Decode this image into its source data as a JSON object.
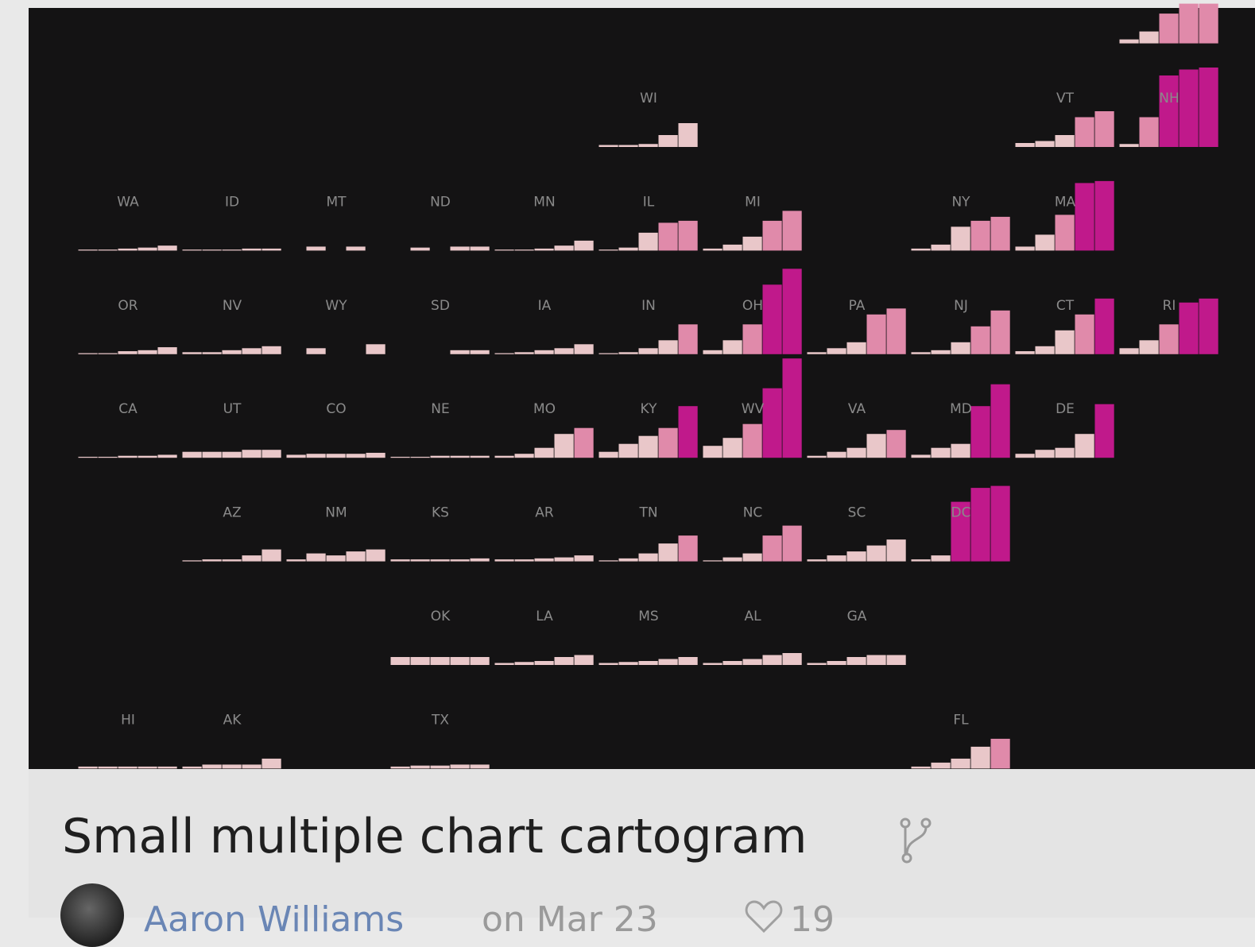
{
  "card": {
    "title": "Small multiple chart cartogram",
    "author": "Aaron Williams",
    "date": "on Mar 23",
    "likes": "19"
  },
  "thumbnail": {
    "type": "bar",
    "background": "#141314",
    "label_color": "#8a8a8a",
    "color_thresholds": [
      26,
      50
    ],
    "colors": [
      "#e9c7c9",
      "#e08aaa",
      "#c0198b"
    ],
    "ylim": [
      0,
      100
    ],
    "states": [
      {
        "label": null,
        "values": [
          4,
          12,
          30,
          40,
          40
        ]
      },
      {
        "label": "WI",
        "values": [
          2,
          2,
          3,
          12,
          24
        ]
      },
      {
        "label": "VT",
        "values": [
          4,
          6,
          12,
          30,
          36
        ]
      },
      {
        "label": "NH",
        "values": [
          3,
          30,
          72,
          78,
          80
        ]
      },
      {
        "label": "WA",
        "values": [
          1,
          1,
          2,
          3,
          5
        ]
      },
      {
        "label": "ID",
        "values": [
          1,
          1,
          1,
          2,
          2
        ]
      },
      {
        "label": "MT",
        "values": [
          null,
          4,
          null,
          4,
          null
        ]
      },
      {
        "label": "ND",
        "values": [
          null,
          3,
          null,
          4,
          4
        ]
      },
      {
        "label": "MN",
        "values": [
          1,
          1,
          2,
          5,
          10
        ]
      },
      {
        "label": "IL",
        "values": [
          1,
          3,
          18,
          28,
          30
        ]
      },
      {
        "label": "MI",
        "values": [
          2,
          6,
          14,
          30,
          40
        ]
      },
      {
        "label": "NY",
        "values": [
          2,
          6,
          24,
          30,
          34
        ]
      },
      {
        "label": "MA",
        "values": [
          4,
          16,
          36,
          68,
          70
        ]
      },
      {
        "label": "OR",
        "values": [
          1,
          1,
          3,
          4,
          7
        ]
      },
      {
        "label": "NV",
        "values": [
          2,
          2,
          4,
          6,
          8
        ]
      },
      {
        "label": "WY",
        "values": [
          null,
          6,
          null,
          null,
          10
        ]
      },
      {
        "label": "SD",
        "values": [
          null,
          null,
          null,
          4,
          4
        ]
      },
      {
        "label": "IA",
        "values": [
          1,
          2,
          4,
          6,
          10
        ]
      },
      {
        "label": "IN",
        "values": [
          1,
          2,
          6,
          14,
          30
        ]
      },
      {
        "label": "OH",
        "values": [
          4,
          14,
          30,
          70,
          86
        ]
      },
      {
        "label": "PA",
        "values": [
          2,
          6,
          12,
          40,
          46
        ]
      },
      {
        "label": "NJ",
        "values": [
          2,
          4,
          12,
          28,
          44
        ]
      },
      {
        "label": "CT",
        "values": [
          3,
          8,
          24,
          40,
          56
        ]
      },
      {
        "label": "RI",
        "values": [
          6,
          14,
          30,
          52,
          56
        ]
      },
      {
        "label": "CA",
        "values": [
          1,
          1,
          2,
          2,
          3
        ]
      },
      {
        "label": "UT",
        "values": [
          6,
          6,
          6,
          8,
          8
        ]
      },
      {
        "label": "CO",
        "values": [
          3,
          4,
          4,
          4,
          5
        ]
      },
      {
        "label": "NE",
        "values": [
          1,
          1,
          2,
          2,
          2
        ]
      },
      {
        "label": "MO",
        "values": [
          2,
          4,
          10,
          24,
          30
        ]
      },
      {
        "label": "KY",
        "values": [
          6,
          14,
          22,
          30,
          52
        ]
      },
      {
        "label": "WV",
        "values": [
          12,
          20,
          34,
          70,
          100
        ]
      },
      {
        "label": "VA",
        "values": [
          2,
          6,
          10,
          24,
          28
        ]
      },
      {
        "label": "MD",
        "values": [
          3,
          10,
          14,
          52,
          74
        ]
      },
      {
        "label": "DE",
        "values": [
          4,
          8,
          10,
          24,
          54
        ]
      },
      {
        "label": "AZ",
        "values": [
          1,
          2,
          2,
          6,
          12
        ]
      },
      {
        "label": "NM",
        "values": [
          2,
          8,
          6,
          10,
          12
        ]
      },
      {
        "label": "KS",
        "values": [
          2,
          2,
          2,
          2,
          3
        ]
      },
      {
        "label": "AR",
        "values": [
          2,
          2,
          3,
          4,
          6
        ]
      },
      {
        "label": "TN",
        "values": [
          1,
          3,
          8,
          18,
          26
        ]
      },
      {
        "label": "NC",
        "values": [
          1,
          4,
          8,
          26,
          36
        ]
      },
      {
        "label": "SC",
        "values": [
          2,
          6,
          10,
          16,
          22
        ]
      },
      {
        "label": "DC",
        "values": [
          2,
          6,
          60,
          74,
          76
        ]
      },
      {
        "label": "OK",
        "values": [
          8,
          8,
          8,
          8,
          8
        ]
      },
      {
        "label": "LA",
        "values": [
          2,
          3,
          4,
          8,
          10
        ]
      },
      {
        "label": "MS",
        "values": [
          2,
          3,
          4,
          6,
          8
        ]
      },
      {
        "label": "AL",
        "values": [
          2,
          4,
          6,
          10,
          12
        ]
      },
      {
        "label": "GA",
        "values": [
          2,
          4,
          8,
          10,
          10
        ]
      },
      {
        "label": "HI",
        "values": [
          2,
          2,
          2,
          2,
          2
        ]
      },
      {
        "label": "AK",
        "values": [
          2,
          4,
          4,
          4,
          10
        ]
      },
      {
        "label": "TX",
        "values": [
          2,
          3,
          3,
          4,
          4
        ]
      },
      {
        "label": "FL",
        "values": [
          2,
          6,
          10,
          22,
          30
        ]
      }
    ]
  }
}
